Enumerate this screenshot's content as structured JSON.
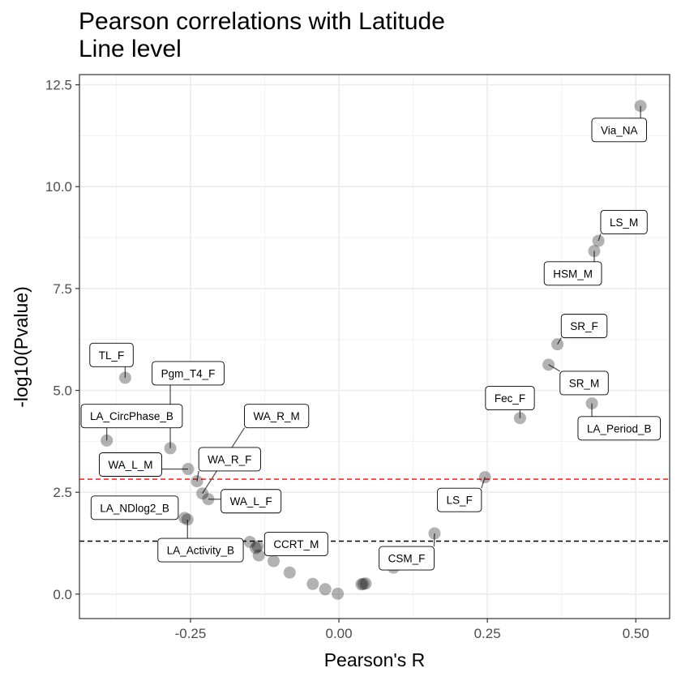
{
  "chart_data": {
    "type": "scatter",
    "title": "Pearson correlations with Latitude",
    "subtitle": "Line level",
    "xlabel": "Pearson's R",
    "ylabel": "-log10(Pvalue)",
    "xlim": [
      -0.437,
      0.557
    ],
    "ylim": [
      -0.6,
      12.75
    ],
    "x_ticks": [
      -0.25,
      0.0,
      0.25,
      0.5
    ],
    "x_tick_labels": [
      "-0.25",
      "0.00",
      "0.25",
      "0.50"
    ],
    "y_ticks": [
      0.0,
      2.5,
      5.0,
      7.5,
      10.0,
      12.5
    ],
    "y_tick_labels": [
      "0.0",
      "2.5",
      "5.0",
      "7.5",
      "10.0",
      "12.5"
    ],
    "grid": true,
    "reference_lines": [
      {
        "y": 2.82,
        "color": "#ff0000",
        "style": "dashed"
      },
      {
        "y": 1.3,
        "color": "#000000",
        "style": "dashed"
      }
    ],
    "points": [
      {
        "x": 0.508,
        "y": 11.98,
        "label": "Via_NA",
        "label_x": 0.472,
        "label_y": 11.39
      },
      {
        "x": 0.437,
        "y": 8.67,
        "label": "LS_M",
        "label_x": 0.48,
        "label_y": 9.13
      },
      {
        "x": 0.43,
        "y": 8.42,
        "label": "HSM_M",
        "label_x": 0.394,
        "label_y": 7.87
      },
      {
        "x": 0.368,
        "y": 6.13,
        "label": "SR_F",
        "label_x": 0.413,
        "label_y": 6.58
      },
      {
        "x": 0.353,
        "y": 5.63,
        "label": "SR_M",
        "label_x": 0.413,
        "label_y": 5.18
      },
      {
        "x": 0.426,
        "y": 4.68,
        "label": "LA_Period_B",
        "label_x": 0.472,
        "label_y": 4.07
      },
      {
        "x": 0.305,
        "y": 4.32,
        "label": "Fec_F",
        "label_x": 0.288,
        "label_y": 4.81
      },
      {
        "x": 0.246,
        "y": 2.87,
        "label": "LS_F",
        "label_x": 0.203,
        "label_y": 2.31
      },
      {
        "x": 0.161,
        "y": 1.49,
        "label": "CSM_F",
        "label_x": 0.114,
        "label_y": 0.88
      },
      {
        "x": -0.36,
        "y": 5.31,
        "label": "TL_F",
        "label_x": -0.383,
        "label_y": 5.87
      },
      {
        "x": -0.284,
        "y": 3.58,
        "label": "Pgm_T4_F",
        "label_x": -0.254,
        "label_y": 5.42
      },
      {
        "x": -0.391,
        "y": 3.77,
        "label": "LA_CircPhase_B",
        "label_x": -0.349,
        "label_y": 4.37
      },
      {
        "x": -0.254,
        "y": 3.07,
        "label": "WA_L_M",
        "label_x": -0.351,
        "label_y": 3.18
      },
      {
        "x": -0.239,
        "y": 2.77,
        "label": "WA_R_F",
        "label_x": -0.184,
        "label_y": 3.31
      },
      {
        "x": -0.23,
        "y": 2.47,
        "label": "WA_R_M",
        "label_x": -0.105,
        "label_y": 4.37
      },
      {
        "x": -0.22,
        "y": 2.33,
        "label": "WA_L_F",
        "label_x": -0.148,
        "label_y": 2.28
      },
      {
        "x": -0.26,
        "y": 1.87,
        "label": "LA_NDlog2_B",
        "label_x": -0.344,
        "label_y": 2.12
      },
      {
        "x": -0.255,
        "y": 1.83,
        "label": "LA_Activity_B",
        "label_x": -0.233,
        "label_y": 1.08
      },
      {
        "x": -0.137,
        "y": 1.17,
        "label": "CCRT_M",
        "label_x": -0.072,
        "label_y": 1.23
      },
      {
        "x": -0.15,
        "y": 1.28
      },
      {
        "x": -0.14,
        "y": 1.13
      },
      {
        "x": -0.135,
        "y": 0.95
      },
      {
        "x": -0.11,
        "y": 0.81
      },
      {
        "x": -0.083,
        "y": 0.53
      },
      {
        "x": -0.044,
        "y": 0.25
      },
      {
        "x": -0.023,
        "y": 0.12
      },
      {
        "x": -0.002,
        "y": 0.01
      },
      {
        "x": 0.038,
        "y": 0.24
      },
      {
        "x": 0.041,
        "y": 0.25
      },
      {
        "x": 0.045,
        "y": 0.26
      },
      {
        "x": 0.092,
        "y": 0.65
      }
    ]
  }
}
